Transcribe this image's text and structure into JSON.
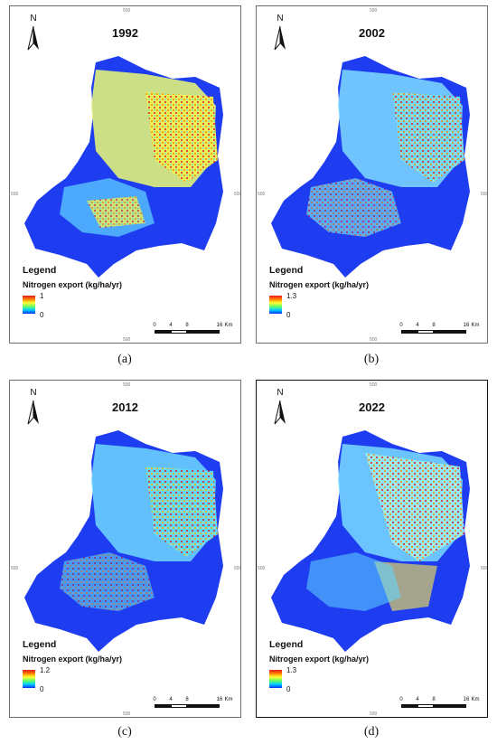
{
  "north_label": "N",
  "legend_title": "Legend",
  "legend_subtitle": "Nitrogen export (kg/ha/yr)",
  "scale": {
    "labels": [
      "0",
      "4",
      "8",
      "16"
    ],
    "unit": "Km"
  },
  "ticks": {
    "top": "500",
    "left": "500",
    "right": "500",
    "bottom": "500"
  },
  "panels": [
    {
      "year": "1992",
      "caption": "(a)",
      "max": "1",
      "min": "0"
    },
    {
      "year": "2002",
      "caption": "(b)",
      "max": "1.3",
      "min": "0"
    },
    {
      "year": "2012",
      "caption": "(c)",
      "max": "1.2",
      "min": "0"
    },
    {
      "year": "2022",
      "caption": "(d)",
      "max": "1.3",
      "min": "0"
    }
  ]
}
